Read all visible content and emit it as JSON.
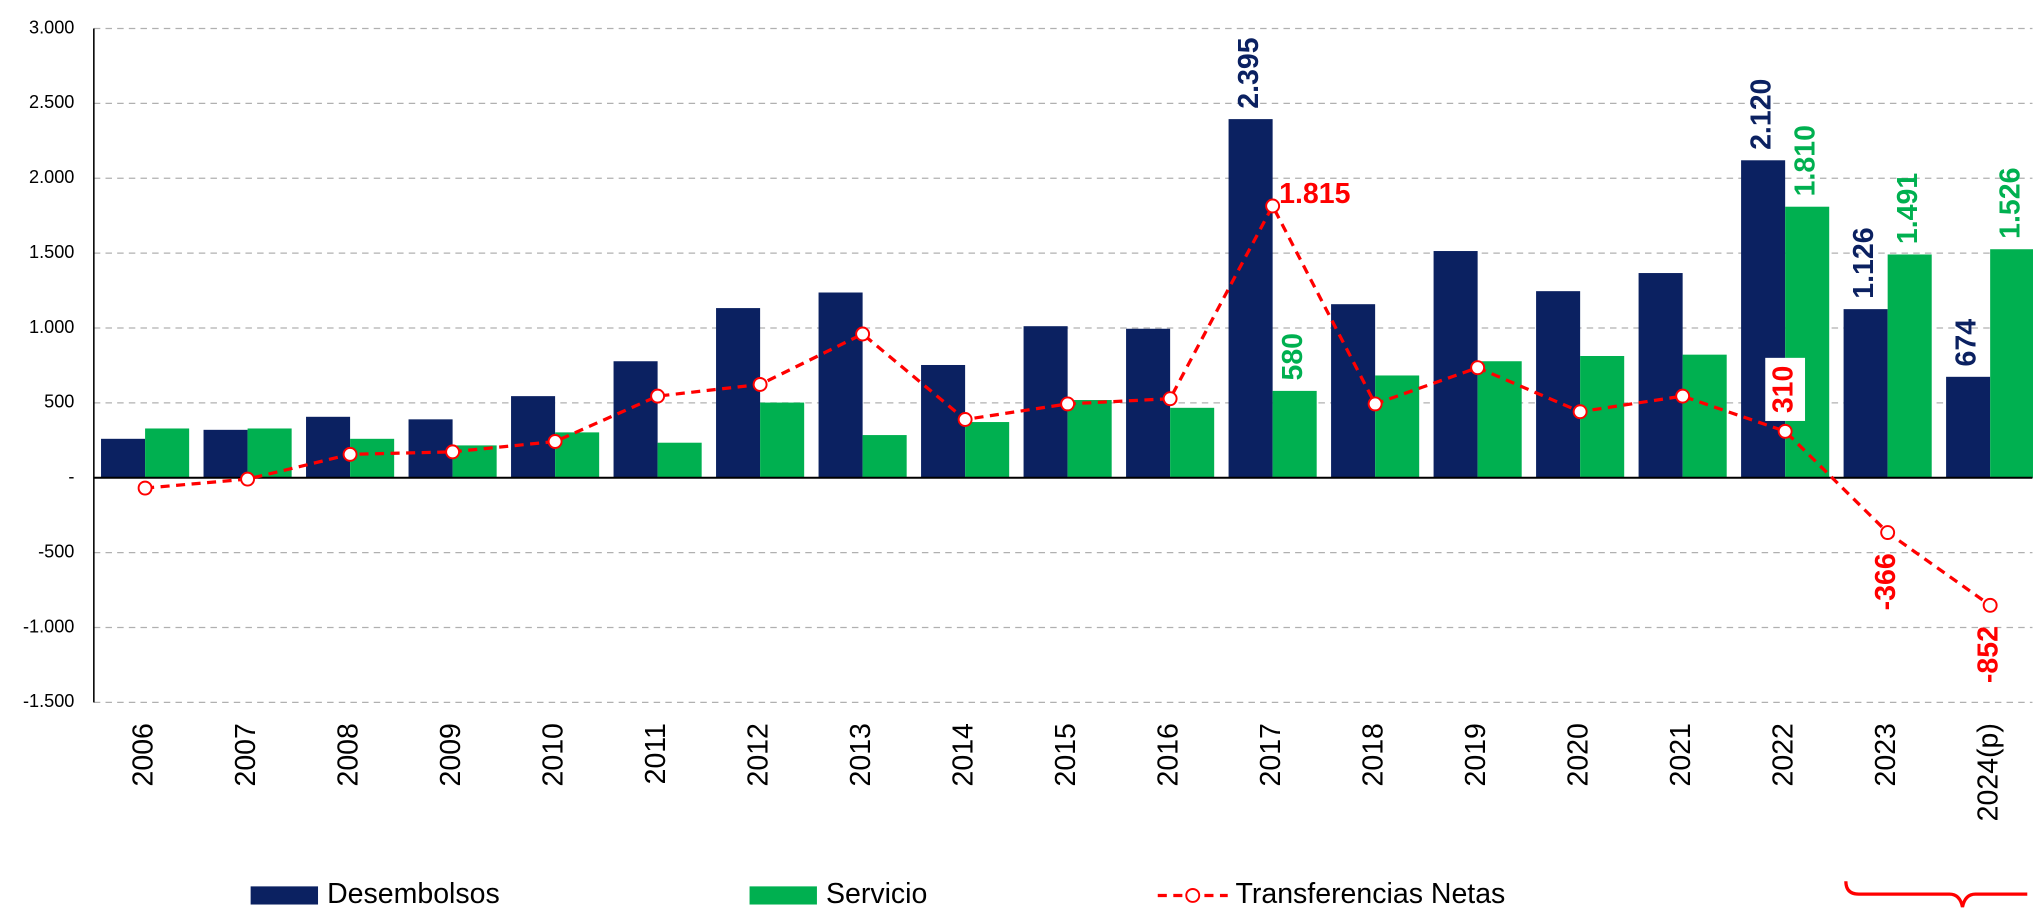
{
  "chart_data": {
    "type": "bar_line",
    "categories": [
      "2006",
      "2007",
      "2008",
      "2009",
      "2010",
      "2011",
      "2012",
      "2013",
      "2014",
      "2015",
      "2016",
      "2017",
      "2018",
      "2019",
      "2020",
      "2021",
      "2022",
      "2023",
      "2024(p)"
    ],
    "series": [
      {
        "name": "Desembolsos",
        "type": "bar",
        "color": "#0b2161",
        "values": [
          260,
          320,
          407,
          390,
          545,
          778,
          1133,
          1237,
          753,
          1012,
          995,
          2395,
          1159,
          1514,
          1246,
          1367,
          2120,
          1126,
          674
        ],
        "value_labels": [
          null,
          null,
          null,
          null,
          null,
          null,
          null,
          null,
          null,
          null,
          null,
          "2.395",
          null,
          null,
          null,
          null,
          "2.120",
          "1.126",
          "674"
        ]
      },
      {
        "name": "Servicio",
        "type": "bar",
        "color": "#00b050",
        "values": [
          329,
          329,
          260,
          216,
          303,
          234,
          502,
          285,
          372,
          519,
          467,
          580,
          683,
          778,
          813,
          822,
          1810,
          1491,
          1526
        ],
        "value_labels": [
          null,
          null,
          null,
          null,
          null,
          null,
          null,
          null,
          null,
          null,
          null,
          "580",
          null,
          null,
          null,
          null,
          "1.810",
          "1.491",
          "1.526"
        ]
      },
      {
        "name": "Transferencias Netas",
        "type": "line",
        "color": "#ff0000",
        "values": [
          -69,
          -9,
          156,
          173,
          242,
          545,
          623,
          960,
          389,
          493,
          528,
          1815,
          493,
          735,
          441,
          545,
          310,
          -366,
          -852
        ],
        "value_labels": [
          null,
          null,
          null,
          null,
          null,
          null,
          null,
          null,
          null,
          null,
          null,
          "1.815",
          null,
          null,
          null,
          null,
          "310",
          "-366",
          "-852"
        ]
      }
    ],
    "ylim": [
      -1500,
      3000
    ],
    "yticks": [
      {
        "value": -1500,
        "label": "-1.500"
      },
      {
        "value": -1000,
        "label": "-1.000"
      },
      -500,
      {
        "value": 0,
        "label": "-"
      },
      500,
      {
        "value": 1000,
        "label": "1.000"
      },
      {
        "value": 1500,
        "label": "1.500"
      },
      {
        "value": 2000,
        "label": "2.000"
      },
      {
        "value": 2500,
        "label": "2.500"
      },
      {
        "value": 3000,
        "label": "3.000"
      }
    ],
    "grid": true,
    "legend": "bottom"
  }
}
